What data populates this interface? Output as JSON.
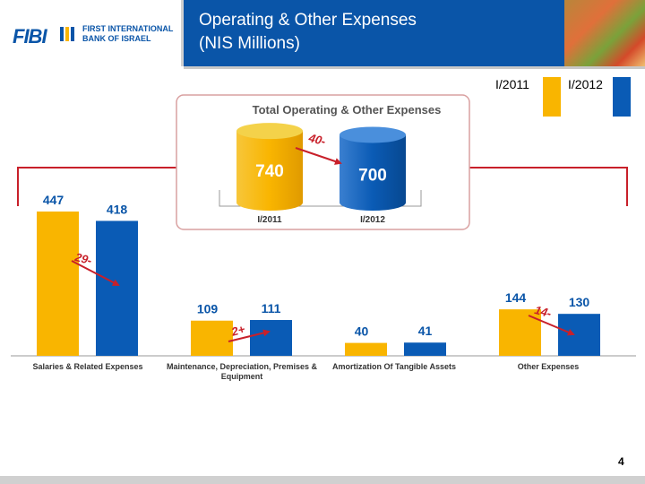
{
  "header": {
    "logo_mark": "FIBI",
    "logo_line1": "FIRST INTERNATIONAL",
    "logo_line2": "BANK OF ISRAEL",
    "title_line1": "Operating & Other Expenses",
    "title_line2": "(NIS Millions)"
  },
  "legend": [
    {
      "label": "I/2011",
      "color": "#f9b500"
    },
    {
      "label": "I/2012",
      "color": "#0a5bb5"
    }
  ],
  "colors": {
    "s2011": "#f9b500",
    "s2012": "#0a5bb5",
    "arrow": "#c8202a",
    "header": "#0a55a8"
  },
  "chart_data": [
    {
      "type": "bar",
      "title": "Total Operating & Other Expenses",
      "categories": [
        "I/2011",
        "I/2012"
      ],
      "values": [
        740,
        700
      ],
      "change_label": "40-"
    },
    {
      "type": "bar",
      "categories": [
        "Salaries & Related Expenses",
        "Maintenance, Depreciation, Premises & Equipment",
        "Amortization Of Tangible Assets",
        "Other Expenses"
      ],
      "series": [
        {
          "name": "I/2011",
          "values": [
            447,
            109,
            40,
            144
          ]
        },
        {
          "name": "I/2012",
          "values": [
            418,
            111,
            41,
            130
          ]
        }
      ],
      "change_labels": [
        "29-",
        "2+",
        "",
        "14-"
      ],
      "ylim": [
        0,
        460
      ]
    }
  ],
  "page_number": "4"
}
